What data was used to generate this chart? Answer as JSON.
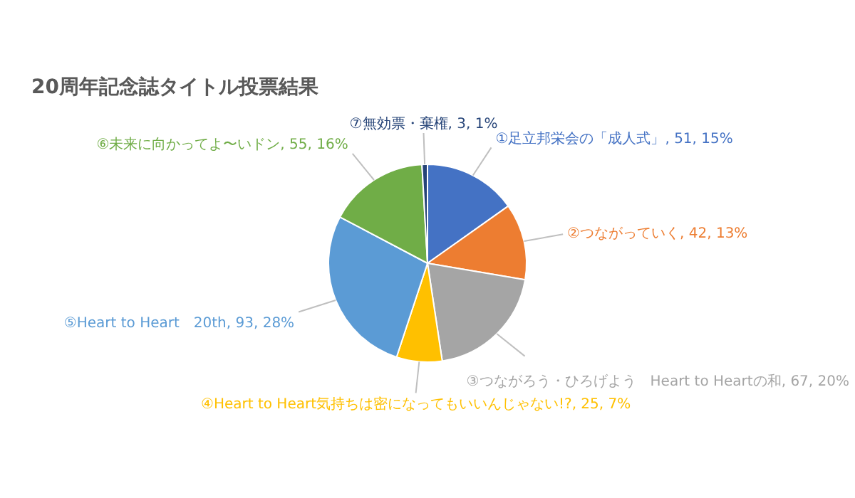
{
  "chart_data": {
    "type": "pie",
    "title": "20周年記念誌タイトル投票結果",
    "categories": [
      "①足立邦栄会の「成人式」",
      "②つながっていく",
      "③つながろう・ひろげよう　Heart to Heartの和",
      "④Heart to Heart気持ちは密になってもいいんじゃない!?",
      "⑤Heart to Heart　20th",
      "⑥未来に向かってよ〜いドン",
      "⑦無効票・棄権"
    ],
    "values": [
      51,
      42,
      67,
      25,
      93,
      55,
      3
    ],
    "value_labels": [
      "51, 15%",
      "42, 13%",
      "67, 20%",
      "25, 7%",
      "93, 28%",
      "55, 16%",
      "3, 1%"
    ],
    "colors": [
      "#4472c4",
      "#ed7d31",
      "#a5a5a5",
      "#ffc000",
      "#5b9bd5",
      "#70ad47",
      "#264478"
    ],
    "legend": false
  }
}
